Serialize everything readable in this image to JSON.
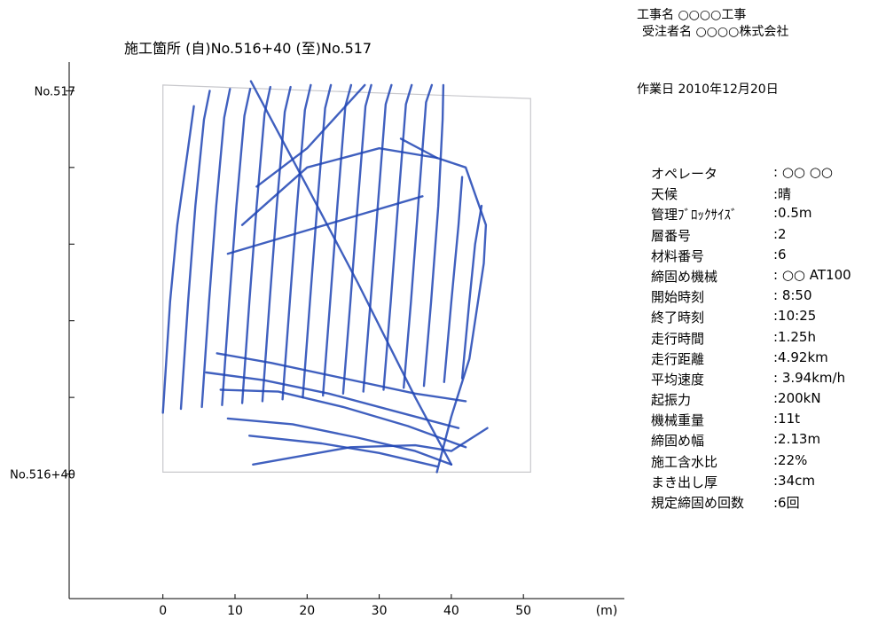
{
  "header": {
    "plot_title": "施工箇所 (自)No.516+40 (至)No.517",
    "construction_name": "工事名 ○○○○工事",
    "contractor": "受注者名 ○○○○株式会社",
    "work_date": "作業日 2010年12月20日"
  },
  "parameters": [
    {
      "label": "オペレータ",
      "value": ": ○○ ○○"
    },
    {
      "label": "天候",
      "value": ":晴"
    },
    {
      "label": "管理ﾌﾞﾛｯｸｻｲｽﾞ",
      "value": ":0.5m"
    },
    {
      "label": "層番号",
      "value": ":2"
    },
    {
      "label": "材料番号",
      "value": ":6"
    },
    {
      "label": "締固め機械",
      "value": ": ○○ AT100"
    },
    {
      "label": "開始時刻",
      "value": ": 8:50"
    },
    {
      "label": "終了時刻",
      "value": ":10:25"
    },
    {
      "label": "走行時間",
      "value": ":1.25h"
    },
    {
      "label": "走行距離",
      "value": ":4.92km"
    },
    {
      "label": "平均速度",
      "value": ": 3.94km/h"
    },
    {
      "label": "起振力",
      "value": ":200kN"
    },
    {
      "label": "機械重量",
      "value": ":11t"
    },
    {
      "label": "締固め幅",
      "value": ":2.13m"
    },
    {
      "label": "施工含水比",
      "value": ":22%"
    },
    {
      "label": "まき出し厚",
      "value": ":34cm"
    },
    {
      "label": "規定締固め回数",
      "value": ":6回"
    }
  ],
  "chart_data": {
    "type": "line",
    "title": "施工箇所 (自)No.516+40 (至)No.517",
    "xlabel": "(m)",
    "xlim": [
      -13,
      64
    ],
    "x_ticks": [
      0,
      10,
      20,
      30,
      40,
      50
    ],
    "ylim": [
      -6.5,
      21.5
    ],
    "y_ticks": [
      {
        "value": 0,
        "label": "No.516+40"
      },
      {
        "value": 20,
        "label": "No.517"
      }
    ],
    "y_minor_ticks": [
      4,
      8,
      12,
      16
    ],
    "boundary": [
      [
        0,
        20.3
      ],
      [
        51,
        19.6
      ],
      [
        51,
        0.1
      ],
      [
        0,
        0.1
      ]
    ],
    "series_color": "#1f44b4",
    "series": [
      {
        "values": [
          [
            0,
            3.2
          ],
          [
            1,
            9
          ],
          [
            2,
            13
          ],
          [
            3.5,
            17
          ],
          [
            4.3,
            19.2
          ]
        ]
      },
      {
        "values": [
          [
            2.5,
            3.4
          ],
          [
            3.5,
            9
          ],
          [
            4.5,
            14
          ],
          [
            5.7,
            18.5
          ],
          [
            6.5,
            20
          ]
        ]
      },
      {
        "values": [
          [
            5.4,
            3.5
          ],
          [
            6.4,
            9
          ],
          [
            7.4,
            14
          ],
          [
            8.5,
            18.6
          ],
          [
            9.3,
            20.1
          ]
        ]
      },
      {
        "values": [
          [
            8.2,
            3.6
          ],
          [
            9.2,
            9
          ],
          [
            10.2,
            14
          ],
          [
            11.3,
            18.7
          ],
          [
            12.1,
            20.1
          ]
        ]
      },
      {
        "values": [
          [
            11,
            3.7
          ],
          [
            12,
            9
          ],
          [
            13,
            14
          ],
          [
            14.1,
            18.8
          ],
          [
            14.9,
            20.2
          ]
        ]
      },
      {
        "values": [
          [
            13.8,
            3.8
          ],
          [
            14.8,
            9
          ],
          [
            15.8,
            14
          ],
          [
            16.9,
            18.9
          ],
          [
            17.7,
            20.2
          ]
        ]
      },
      {
        "values": [
          [
            16.6,
            3.9
          ],
          [
            17.6,
            9
          ],
          [
            18.6,
            14
          ],
          [
            19.7,
            19
          ],
          [
            20.5,
            20.3
          ]
        ]
      },
      {
        "values": [
          [
            19.4,
            4
          ],
          [
            20.4,
            9
          ],
          [
            21.4,
            14
          ],
          [
            22.5,
            19.1
          ],
          [
            23.3,
            20.3
          ]
        ]
      },
      {
        "values": [
          [
            22.2,
            4.1
          ],
          [
            23.2,
            9
          ],
          [
            24.2,
            14
          ],
          [
            25.3,
            19.2
          ],
          [
            26.1,
            20.3
          ]
        ]
      },
      {
        "values": [
          [
            25,
            4.2
          ],
          [
            26,
            9
          ],
          [
            27,
            14
          ],
          [
            28.1,
            19.2
          ],
          [
            28.9,
            20.3
          ]
        ]
      },
      {
        "values": [
          [
            27.8,
            4.3
          ],
          [
            28.8,
            9
          ],
          [
            29.8,
            14
          ],
          [
            30.9,
            19.3
          ],
          [
            31.7,
            20.3
          ]
        ]
      },
      {
        "values": [
          [
            30.6,
            4.4
          ],
          [
            31.6,
            9
          ],
          [
            32.6,
            14
          ],
          [
            33.7,
            19.3
          ],
          [
            34.5,
            20.3
          ]
        ]
      },
      {
        "values": [
          [
            33.4,
            4.5
          ],
          [
            34.4,
            9
          ],
          [
            35.4,
            14
          ],
          [
            36.5,
            19.4
          ],
          [
            37.3,
            20.3
          ]
        ]
      },
      {
        "values": [
          [
            36.2,
            4.6
          ],
          [
            37.2,
            9
          ],
          [
            38.2,
            14
          ],
          [
            38.8,
            18.5
          ],
          [
            38.9,
            20.3
          ]
        ]
      },
      {
        "values": [
          [
            39,
            4.8
          ],
          [
            40,
            9
          ],
          [
            41,
            13
          ],
          [
            41.5,
            15.5
          ]
        ]
      },
      {
        "values": [
          [
            41.5,
            5
          ],
          [
            42.5,
            9
          ],
          [
            43.3,
            12
          ],
          [
            44.2,
            14
          ]
        ]
      },
      {
        "values": [
          [
            38,
            0.1
          ],
          [
            40,
            3
          ],
          [
            42.5,
            6
          ],
          [
            44.5,
            11
          ],
          [
            44.8,
            13
          ],
          [
            42,
            16
          ],
          [
            38,
            16.5
          ],
          [
            33,
            17.5
          ]
        ]
      },
      {
        "values": [
          [
            7.5,
            6.3
          ],
          [
            15,
            5.8
          ],
          [
            25,
            5
          ],
          [
            35,
            4.2
          ],
          [
            42,
            3.8
          ]
        ]
      },
      {
        "values": [
          [
            8,
            4.4
          ],
          [
            16,
            4.3
          ],
          [
            25,
            3.5
          ],
          [
            34,
            2.5
          ],
          [
            42,
            1.4
          ]
        ]
      },
      {
        "values": [
          [
            6,
            5.3
          ],
          [
            14,
            4.9
          ],
          [
            23,
            4.2
          ],
          [
            32,
            3.3
          ],
          [
            41,
            2.4
          ]
        ]
      },
      {
        "values": [
          [
            9,
            2.9
          ],
          [
            18,
            2.6
          ],
          [
            27,
            1.9
          ],
          [
            35,
            1.2
          ],
          [
            40,
            0.5
          ]
        ]
      },
      {
        "values": [
          [
            12,
            2
          ],
          [
            22,
            1.6
          ],
          [
            30,
            1.1
          ],
          [
            38,
            0.4
          ]
        ]
      },
      {
        "values": [
          [
            12.5,
            0.5
          ],
          [
            26,
            1.4
          ],
          [
            35,
            1.5
          ],
          [
            40,
            1.2
          ],
          [
            45,
            2.4
          ]
        ]
      },
      {
        "values": [
          [
            12.2,
            20.5
          ],
          [
            20,
            15
          ],
          [
            27,
            10
          ],
          [
            35,
            4
          ],
          [
            40,
            0.5
          ]
        ]
      },
      {
        "values": [
          [
            13,
            15
          ],
          [
            20,
            17
          ],
          [
            28,
            20.3
          ]
        ]
      },
      {
        "values": [
          [
            11,
            13
          ],
          [
            20,
            16
          ],
          [
            30,
            17
          ],
          [
            38,
            16.5
          ]
        ]
      },
      {
        "values": [
          [
            9,
            11.5
          ],
          [
            18,
            12.5
          ],
          [
            27,
            13.5
          ],
          [
            36,
            14.5
          ]
        ]
      }
    ]
  }
}
